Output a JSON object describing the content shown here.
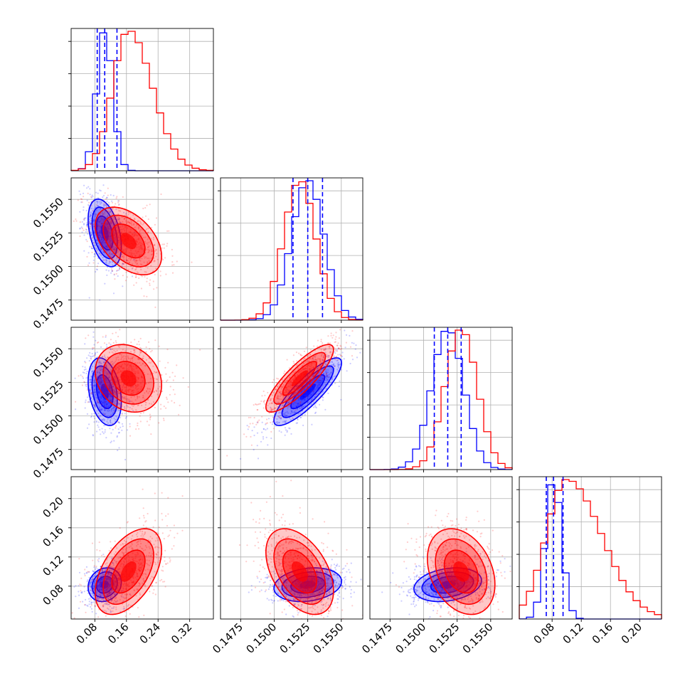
{
  "chart_data": {
    "type": "corner",
    "colors": {
      "series_a": "#0000ff",
      "series_b": "#ff0000",
      "grid": "#b0b0b0"
    },
    "grid": true,
    "params": [
      {
        "range": [
          0.02,
          0.38
        ],
        "ticks": [
          "0.08",
          "0.16",
          "0.24",
          "0.32"
        ],
        "tick_values": [
          0.08,
          0.16,
          0.24,
          0.32
        ],
        "a": {
          "mean": 0.105,
          "sd": 0.02,
          "quantiles": [
            0.086,
            0.105,
            0.136
          ]
        },
        "b": {
          "mean": 0.165,
          "sd": 0.04,
          "quantiles": [
            0.086,
            0.105,
            0.136
          ]
        }
      },
      {
        "range": [
          0.146,
          0.1566
        ],
        "ticks": [
          "0.1475",
          "0.1500",
          "0.1525",
          "0.1550"
        ],
        "tick_values": [
          0.1475,
          0.15,
          0.1525,
          0.155
        ],
        "a": {
          "mean": 0.1525,
          "sd": 0.0012,
          "quantiles": [
            0.1514,
            0.1525,
            0.1536
          ]
        },
        "b": {
          "mean": 0.1519,
          "sd": 0.0012,
          "quantiles": [
            0.1514,
            0.1525,
            0.1536
          ]
        }
      },
      {
        "range": [
          0.146,
          0.1566
        ],
        "ticks": [
          "0.1475",
          "0.1500",
          "0.1525",
          "0.1550"
        ],
        "tick_values": [
          0.1475,
          0.15,
          0.1525,
          0.155
        ],
        "a": {
          "mean": 0.1518,
          "sd": 0.0012,
          "quantiles": [
            0.1508,
            0.1518,
            0.1528
          ]
        },
        "b": {
          "mean": 0.1528,
          "sd": 0.0012,
          "quantiles": [
            0.1508,
            0.1518,
            0.1528
          ]
        }
      },
      {
        "range": [
          0.035,
          0.23
        ],
        "ticks": [
          "0.08",
          "0.12",
          "0.16",
          "0.20"
        ],
        "tick_values": [
          0.08,
          0.12,
          0.16,
          0.2
        ],
        "a": {
          "mean": 0.082,
          "sd": 0.011,
          "quantiles": [
            0.072,
            0.082,
            0.095
          ]
        },
        "b": {
          "mean": 0.1,
          "sd": 0.028,
          "quantiles": [
            0.072,
            0.082,
            0.095
          ]
        }
      }
    ],
    "correlations": {
      "1-0": {
        "a": -0.4,
        "b": -0.45
      },
      "2-0": {
        "a": -0.3,
        "b": -0.2
      },
      "2-1": {
        "a": 0.85,
        "b": 0.85
      },
      "3-0": {
        "a": 0.15,
        "b": 0.5
      },
      "3-1": {
        "a": 0.2,
        "b": -0.45
      },
      "3-2": {
        "a": 0.25,
        "b": -0.3
      }
    }
  }
}
